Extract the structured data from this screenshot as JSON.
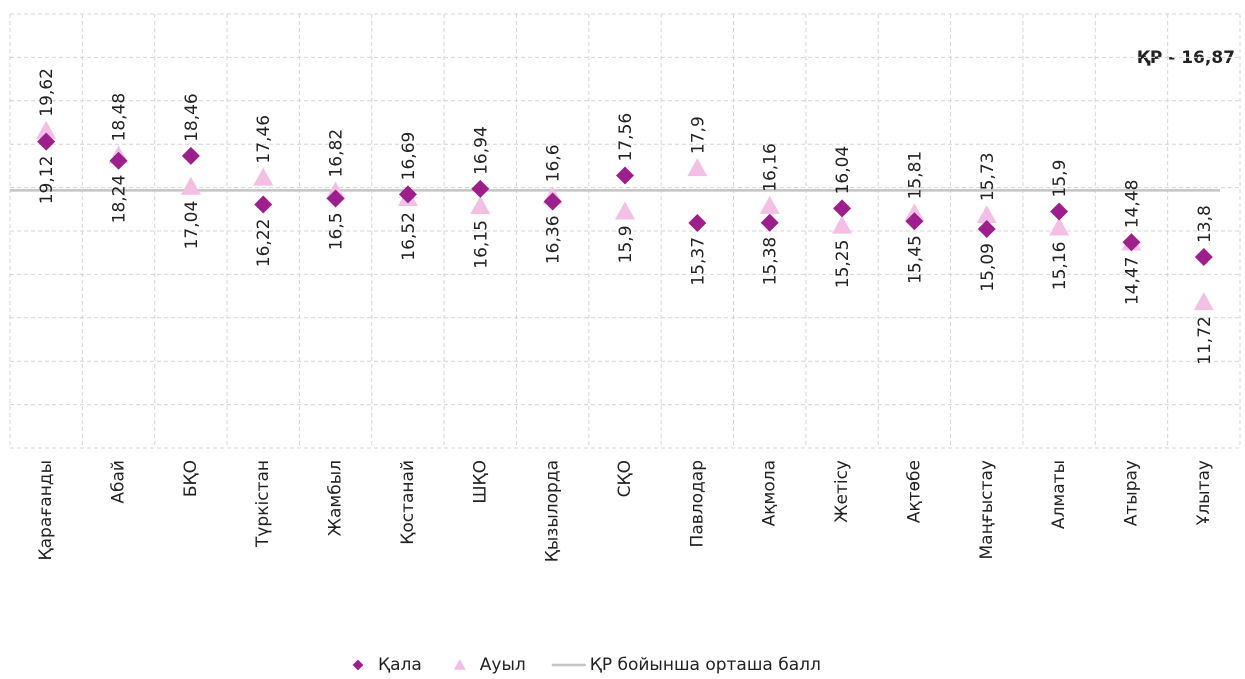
{
  "chart_data": {
    "type": "dot",
    "categories": [
      "Қарағанды",
      "Абай",
      "БҚО",
      "Түркістан",
      "Жамбыл",
      "Қостанай",
      "ШҚО",
      "Қызылорда",
      "СҚО",
      "Павлодар",
      "Ақмола",
      "Жетісу",
      "Ақтөбе",
      "Маңғыстау",
      "Алматы",
      "Атырау",
      "Ұлытау"
    ],
    "series": [
      {
        "name": "Қала",
        "color": "#9c1f8c",
        "marker": "diamond",
        "values": [
          19.12,
          18.24,
          18.46,
          16.22,
          16.5,
          16.69,
          16.94,
          16.36,
          17.56,
          15.37,
          15.38,
          16.04,
          15.45,
          15.09,
          15.9,
          14.48,
          13.8
        ],
        "value_labels": [
          "19,12",
          "18,24",
          "18,46",
          "16,22",
          "16,5",
          "16,69",
          "16,94",
          "16,36",
          "17,56",
          "15,37",
          "15,38",
          "16,04",
          "15,45",
          "15,09",
          "15,9",
          "14,48",
          "13,8"
        ]
      },
      {
        "name": "Ауыл",
        "color": "#f3bfe4",
        "marker": "triangle",
        "values": [
          19.62,
          18.48,
          17.04,
          17.46,
          16.82,
          16.52,
          16.15,
          16.6,
          15.9,
          17.9,
          16.16,
          15.25,
          15.81,
          15.73,
          15.16,
          14.47,
          11.72
        ],
        "value_labels": [
          "19,62",
          "18,48",
          "17,04",
          "17,46",
          "16,82",
          "16,52",
          "16,15",
          "16,6",
          "15,9",
          "17,9",
          "16,16",
          "15,25",
          "15,81",
          "15,73",
          "15,16",
          "14,47",
          "11,72"
        ]
      }
    ],
    "reference": {
      "name": "ҚР бойынша орташа балл",
      "value": 16.87,
      "color": "#c4c4c4"
    },
    "annotation": "ҚР - 16,87",
    "ylim": [
      5,
      25
    ],
    "yticks": [
      5,
      7,
      9,
      11,
      13,
      15,
      17,
      19,
      21,
      23,
      25
    ],
    "grid": true,
    "legend": "bottom"
  }
}
